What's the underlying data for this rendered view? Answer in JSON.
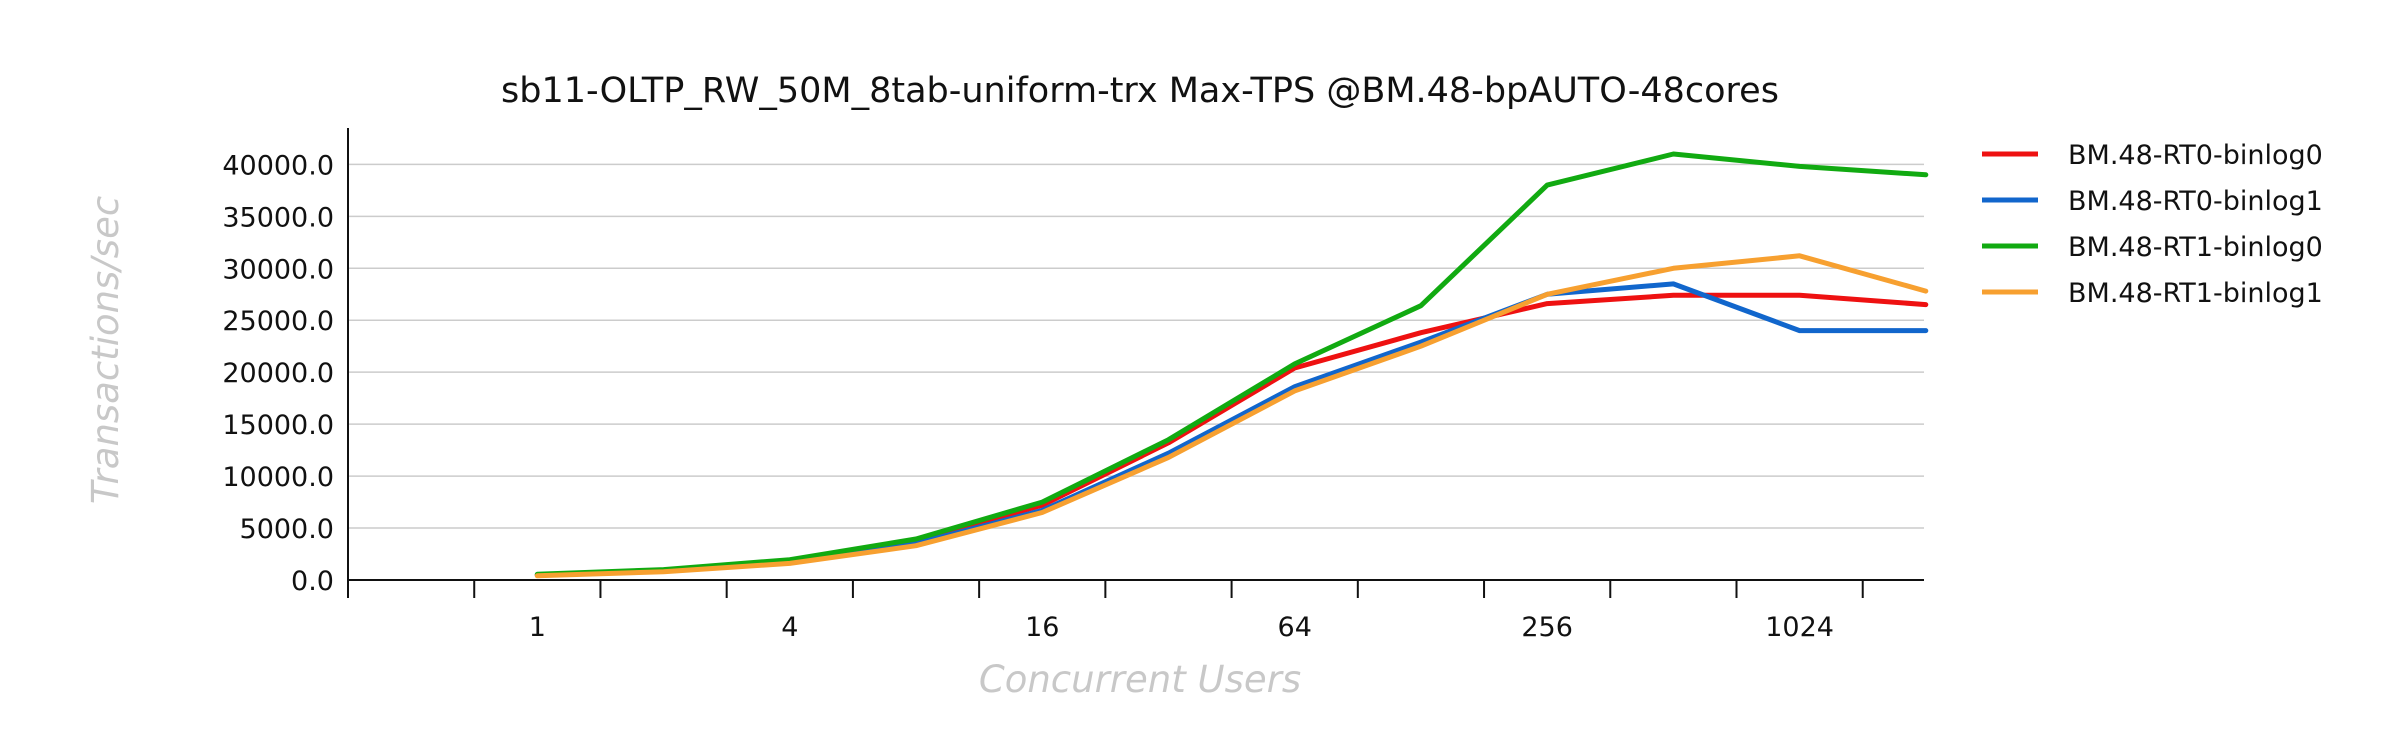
{
  "chart_data": {
    "type": "line",
    "title": "sb11-OLTP_RW_50M_8tab-uniform-trx Max-TPS @BM.48-bpAUTO-48cores",
    "xlabel": "Concurrent Users",
    "ylabel": "Transactions/sec",
    "x_scale": "log2",
    "x": [
      1,
      2,
      4,
      8,
      16,
      32,
      64,
      128,
      256,
      512,
      1024,
      2048
    ],
    "x_tick_labels": [
      "1",
      "4",
      "16",
      "64",
      "256",
      "1024"
    ],
    "x_tick_values": [
      1,
      4,
      16,
      64,
      256,
      1024
    ],
    "ylim": [
      0,
      43500
    ],
    "y_ticks": [
      0,
      5000,
      10000,
      15000,
      20000,
      25000,
      30000,
      35000,
      40000
    ],
    "y_tick_labels": [
      "0.0",
      "5000.0",
      "10000.0",
      "15000.0",
      "20000.0",
      "25000.0",
      "30000.0",
      "35000.0",
      "40000.0"
    ],
    "grid": true,
    "legend_position": "right",
    "series": [
      {
        "name": "BM.48-RT0-binlog0",
        "color": "#ee1111",
        "values": [
          500,
          950,
          1850,
          3800,
          7200,
          13200,
          20400,
          23800,
          26600,
          27400,
          27400,
          26500
        ]
      },
      {
        "name": "BM.48-RT0-binlog1",
        "color": "#1166cc",
        "values": [
          450,
          850,
          1700,
          3500,
          6700,
          12200,
          18600,
          22900,
          27500,
          28500,
          24000,
          24000
        ]
      },
      {
        "name": "BM.48-RT1-binlog0",
        "color": "#11aa11",
        "values": [
          550,
          1000,
          1950,
          3950,
          7500,
          13500,
          20800,
          26400,
          38000,
          41000,
          39800,
          39000
        ]
      },
      {
        "name": "BM.48-RT1-binlog1",
        "color": "#f7a030",
        "values": [
          400,
          800,
          1600,
          3300,
          6500,
          11800,
          18200,
          22500,
          27500,
          30000,
          31200,
          27800
        ]
      }
    ]
  }
}
